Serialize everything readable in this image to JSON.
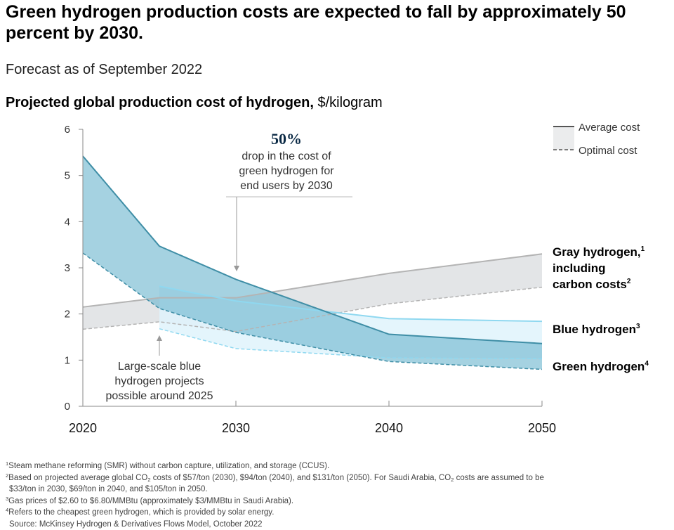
{
  "title": "Green hydrogen production costs are expected to fall by approximately 50 percent by 2030.",
  "subtitle": "Forecast as of September 2022",
  "chart_title": {
    "bold": "Projected global production cost of hydrogen,",
    "unit": " $/kilogram"
  },
  "legend": {
    "average": "Average cost",
    "optimal": "Optimal cost"
  },
  "callout_top": {
    "value": "50%",
    "lines": [
      "drop in the cost of",
      "green hydrogen for",
      "end users by 2030"
    ]
  },
  "callout_blue": {
    "lines": [
      "Large-scale blue",
      "hydrogen projects",
      "possible around 2025"
    ]
  },
  "series_labels": {
    "gray": {
      "line1": "Gray hydrogen,",
      "sup1": "1",
      "line2": "including",
      "line3": "carbon costs",
      "sup3": "2"
    },
    "blue": {
      "text": "Blue hydrogen",
      "sup": "3"
    },
    "green": {
      "text": "Green hydrogen",
      "sup": "4"
    }
  },
  "colors": {
    "gray_band": "#e0e2e4",
    "gray_line": "#b4b4b4",
    "blue_band": "#dff3fb",
    "blue_line": "#8fd8f0",
    "green_band": "#6db7cf",
    "green_line": "#3f8ea6"
  },
  "chart_data": {
    "type": "area",
    "ylim": [
      0,
      6
    ],
    "xlim": [
      2020,
      2050
    ],
    "yticks": [
      0,
      1,
      2,
      3,
      4,
      5,
      6
    ],
    "xticks": [
      2020,
      2030,
      2040,
      2050
    ],
    "series": [
      {
        "name": "Gray hydrogen",
        "x": [
          2020,
          2025,
          2030,
          2040,
          2050
        ],
        "average": [
          2.15,
          2.35,
          2.35,
          2.88,
          3.3
        ],
        "optimal": [
          1.67,
          1.83,
          1.62,
          2.22,
          2.58
        ]
      },
      {
        "name": "Blue hydrogen",
        "x": [
          2025,
          2030,
          2040,
          2050
        ],
        "average": [
          2.6,
          2.28,
          1.9,
          1.84
        ],
        "optimal": [
          1.68,
          1.25,
          1.05,
          1.03
        ]
      },
      {
        "name": "Green hydrogen",
        "x": [
          2020,
          2025,
          2030,
          2040,
          2050
        ],
        "average": [
          5.42,
          3.47,
          2.75,
          1.56,
          1.36
        ],
        "optimal": [
          3.32,
          2.12,
          1.6,
          0.97,
          0.8
        ]
      }
    ]
  },
  "footnotes": {
    "n1": {
      "sup": "1",
      "text": "Steam methane reforming (SMR) without carbon capture, utilization, and storage (CCUS)."
    },
    "n2": {
      "sup": "2",
      "a": "Based on projected average global CO",
      "sub": "2",
      "b": " costs of $57/ton (2030), $94/ton (2040), and $131/ton (2050). For Saudi Arabia, CO",
      "sub2": "2",
      "c": " costs are assumed to be",
      "cont": "$33/ton in 2030, $69/ton in 2040, and $105/ton in 2050."
    },
    "n3": {
      "sup": "3",
      "text": "Gas prices of $2.60 to $6.80/MMBtu (approximately $3/MMBtu in Saudi Arabia)."
    },
    "n4": {
      "sup": "4",
      "text": "Refers to the cheapest green hydrogen, which is provided by solar energy."
    },
    "source": "Source: McKinsey Hydrogen & Derivatives Flows Model, October 2022"
  }
}
